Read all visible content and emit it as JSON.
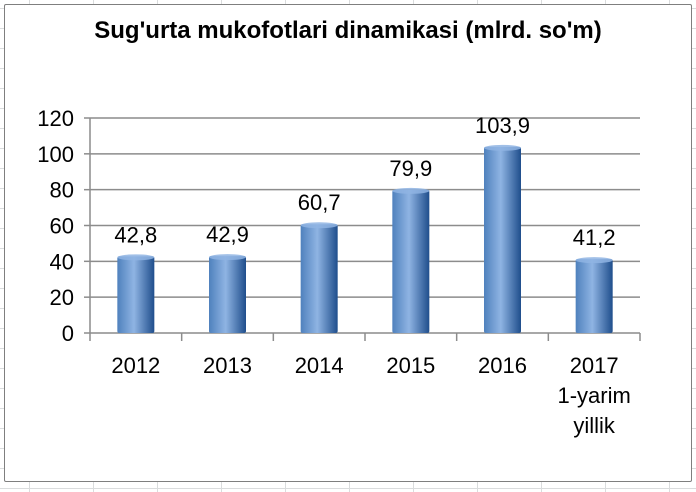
{
  "chart_data": {
    "type": "bar",
    "title": "Sug'urta mukofotlari dinamikasi (mlrd. so'm)",
    "categories": [
      [
        "2012"
      ],
      [
        "2013"
      ],
      [
        "2014"
      ],
      [
        "2015"
      ],
      [
        "2016"
      ],
      [
        "2017",
        "1-yarim",
        "yillik"
      ]
    ],
    "values": [
      42.8,
      42.9,
      60.7,
      79.9,
      103.9,
      41.2
    ],
    "data_labels": [
      "42,8",
      "42,9",
      "60,7",
      "79,9",
      "103,9",
      "41,2"
    ],
    "yticks": [
      0,
      20,
      40,
      60,
      80,
      100,
      120
    ],
    "ylim": [
      0,
      120
    ],
    "grid": true,
    "legend": false,
    "colors": {
      "bar_light": "#8fb4e3",
      "bar_mid": "#4f81bd",
      "bar_dark": "#1f4e8c",
      "grid": "#8c8c8c",
      "axis": "#8c8c8c",
      "text": "#000000"
    }
  }
}
